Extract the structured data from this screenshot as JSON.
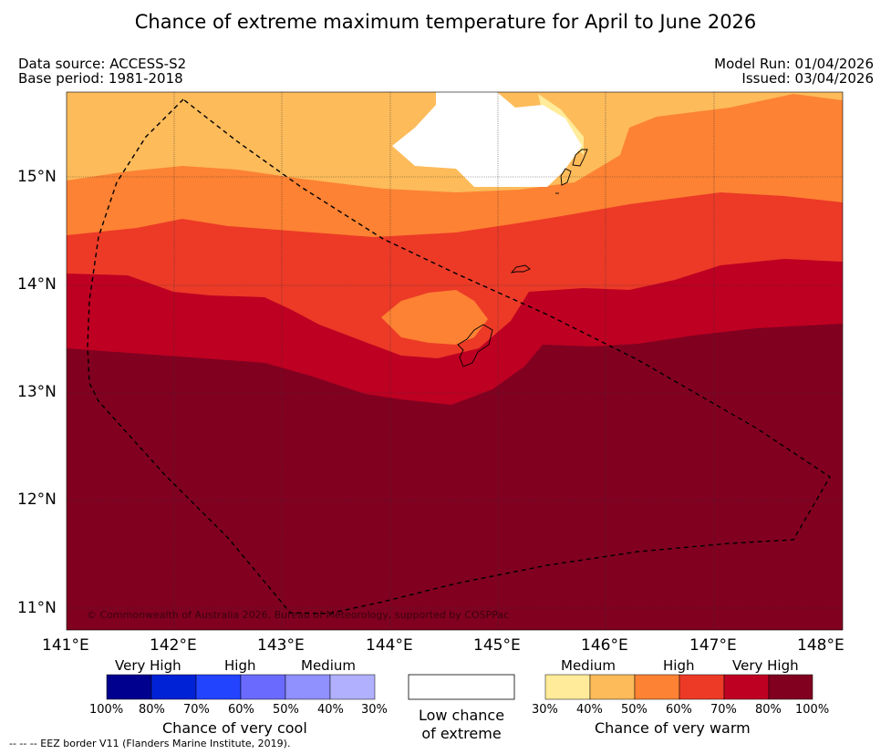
{
  "title": "Chance of extreme maximum temperature for April to June 2026",
  "data_source": "Data source: ACCESS-S2",
  "base_period": "Base period: 1981-2018",
  "model_run": "Model Run: 01/04/2026",
  "issued": "Issued: 03/04/2026",
  "copyright": "© Commonwealth of Australia 2026, Bureau of Meteorology, supported by COSPPac",
  "footer_note": "--  --  -- EEZ border V11 (Flanders Marine Institute, 2019).",
  "map": {
    "lat_labels": [
      "15°N",
      "14°N",
      "13°N",
      "12°N",
      "11°N"
    ],
    "lon_labels": [
      "141°E",
      "142°E",
      "143°E",
      "144°E",
      "145°E",
      "146°E",
      "147°E",
      "148°E"
    ]
  },
  "colors": {
    "cool_80_100": "#00008f",
    "cool_70_80": "#0022d6",
    "cool_60_70": "#2244ff",
    "cool_50_60": "#6a6aff",
    "cool_40_50": "#9090ff",
    "cool_30_40": "#b0b0ff",
    "warm_30_40": "#ffeb99",
    "warm_40_50": "#fdbb5a",
    "warm_50_60": "#fd8233",
    "warm_60_70": "#ec3a27",
    "warm_70_80": "#be0022",
    "warm_80_100": "#810020",
    "low_chance": "#ffffff"
  },
  "legend": {
    "cool": {
      "labels": [
        "Very High",
        "High",
        "Medium"
      ],
      "ticks": [
        "100%",
        "80%",
        "70%",
        "60%",
        "50%",
        "40%",
        "30%"
      ],
      "caption": "Chance of very cool"
    },
    "low": {
      "line1": "Low chance",
      "line2": "of extreme"
    },
    "warm": {
      "labels": [
        "Medium",
        "High",
        "Very High"
      ],
      "ticks": [
        "30%",
        "40%",
        "50%",
        "60%",
        "70%",
        "80%",
        "100%"
      ],
      "caption": "Chance of very warm"
    }
  }
}
